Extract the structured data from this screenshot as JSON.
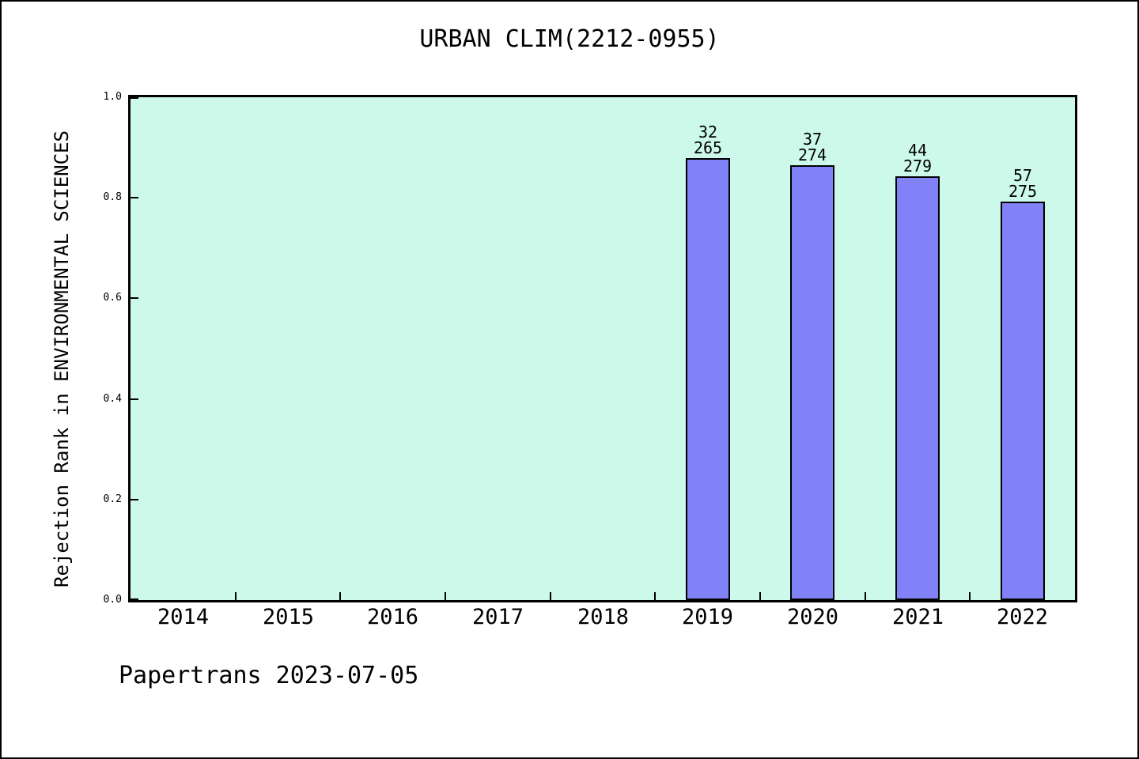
{
  "chart_data": {
    "type": "bar",
    "title": "URBAN CLIM(2212-0955)",
    "xlabel": "",
    "ylabel": "Rejection Rank in ENVIRONMENTAL SCIENCES",
    "footer": "Papertrans 2023-07-05",
    "categories": [
      "2014",
      "2015",
      "2016",
      "2017",
      "2018",
      "2019",
      "2020",
      "2021",
      "2022"
    ],
    "series": [
      {
        "name": "rejection-rank",
        "values": [
          null,
          null,
          null,
          null,
          null,
          0.879,
          0.865,
          0.842,
          0.793
        ]
      }
    ],
    "bar_annotations": [
      null,
      null,
      null,
      null,
      null,
      {
        "rank": "32",
        "total": "265"
      },
      {
        "rank": "37",
        "total": "274"
      },
      {
        "rank": "44",
        "total": "279"
      },
      {
        "rank": "57",
        "total": "275"
      }
    ],
    "ylim": [
      0.0,
      1.0
    ],
    "yticks": [
      "0.0",
      "0.2",
      "0.4",
      "0.6",
      "0.8",
      "1.0"
    ],
    "grid": "off",
    "legend": "none",
    "plot_bg": "#ccf9ea",
    "bar_color": "#8282f8",
    "bar_edge": "#000000",
    "text_color": "#000000"
  }
}
